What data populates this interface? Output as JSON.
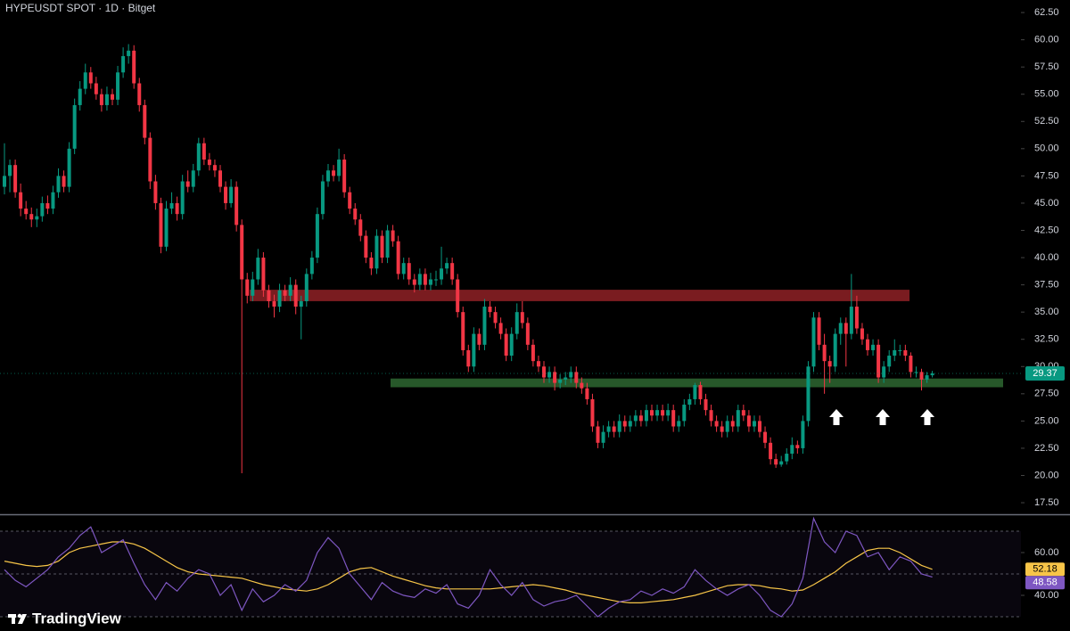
{
  "chart_data": [
    {
      "type": "candlestick",
      "title": "HYPEUSDT SPOT · 1D · Bitget",
      "up_color": "#089981",
      "down_color": "#f23645",
      "ylim": [
        16.44,
        63.65
      ],
      "yticks": [
        {
          "value": 62.5,
          "label": "62.50"
        },
        {
          "value": 60,
          "label": "60.00"
        },
        {
          "value": 57.5,
          "label": "57.50"
        },
        {
          "value": 55,
          "label": "55.00"
        },
        {
          "value": 52.5,
          "label": "52.50"
        },
        {
          "value": 50,
          "label": "50.00"
        },
        {
          "value": 47.5,
          "label": "47.50"
        },
        {
          "value": 45,
          "label": "45.00"
        },
        {
          "value": 42.5,
          "label": "42.50"
        },
        {
          "value": 40,
          "label": "40.00"
        },
        {
          "value": 37.5,
          "label": "37.50"
        },
        {
          "value": 35,
          "label": "35.00"
        },
        {
          "value": 32.5,
          "label": "32.50"
        },
        {
          "value": 30,
          "label": "30.00"
        },
        {
          "value": 27.5,
          "label": "27.50"
        },
        {
          "value": 25,
          "label": "25.00"
        },
        {
          "value": 22.5,
          "label": "22.50"
        },
        {
          "value": 20,
          "label": "20.00"
        },
        {
          "value": 17.5,
          "label": "17.50"
        }
      ],
      "zones": [
        {
          "low": 36.0,
          "high": 37.05,
          "color": "#7a1c20"
        },
        {
          "low": 28.1,
          "high": 28.9,
          "color": "#27582a"
        }
      ],
      "candles": [
        [
          46.5,
          50.5,
          45.8,
          47.5
        ],
        [
          47.5,
          49,
          46,
          48.5
        ],
        [
          48.5,
          49,
          45.5,
          46
        ],
        [
          46,
          46.8,
          43.8,
          44.5
        ],
        [
          44.5,
          45.2,
          43.5,
          44
        ],
        [
          44,
          44.6,
          42.8,
          43.5
        ],
        [
          43.5,
          44.5,
          42.8,
          43.8
        ],
        [
          43.8,
          45.6,
          43.3,
          45
        ],
        [
          45,
          45.7,
          44,
          44.5
        ],
        [
          44.5,
          46.6,
          44,
          46
        ],
        [
          46,
          48.2,
          45.5,
          47.5
        ],
        [
          47.5,
          48,
          46,
          46.5
        ],
        [
          46.5,
          50.6,
          46,
          50
        ],
        [
          50,
          54.6,
          49.5,
          54
        ],
        [
          54,
          56.2,
          53.5,
          55.5
        ],
        [
          55.5,
          57.8,
          55,
          57
        ],
        [
          57,
          57.5,
          55.5,
          56
        ],
        [
          56,
          56.6,
          54.5,
          55
        ],
        [
          55,
          55.5,
          53.4,
          54
        ],
        [
          54,
          55.7,
          53.5,
          55
        ],
        [
          55,
          55.5,
          54,
          54.5
        ],
        [
          54.5,
          57.6,
          54,
          57
        ],
        [
          57,
          59.3,
          56.5,
          58.5
        ],
        [
          58.5,
          59.6,
          57.8,
          59
        ],
        [
          59,
          59.5,
          55.5,
          56
        ],
        [
          56,
          56.5,
          53.4,
          54
        ],
        [
          54,
          54.5,
          50.4,
          51
        ],
        [
          51,
          51.5,
          46.3,
          47
        ],
        [
          47,
          47.6,
          44.4,
          45
        ],
        [
          45,
          45.5,
          40.4,
          41
        ],
        [
          41,
          45.2,
          40.6,
          44.5
        ],
        [
          44.5,
          46,
          44,
          45
        ],
        [
          45,
          45.6,
          43.4,
          44
        ],
        [
          44,
          47.6,
          43.5,
          47
        ],
        [
          47,
          48,
          46,
          46.5
        ],
        [
          46.5,
          48.6,
          46,
          48
        ],
        [
          48,
          51,
          47.5,
          50.5
        ],
        [
          50.5,
          51,
          48.5,
          49
        ],
        [
          49,
          49.6,
          48,
          48.5
        ],
        [
          48.5,
          49,
          47.4,
          48
        ],
        [
          48,
          48.5,
          46,
          46.5
        ],
        [
          46.5,
          47,
          44.4,
          45
        ],
        [
          45,
          47.2,
          44.6,
          46.5
        ],
        [
          46.5,
          47,
          42.4,
          43
        ],
        [
          43,
          43.5,
          20.2,
          38
        ],
        [
          38,
          38.6,
          35.8,
          36.5
        ],
        [
          36.5,
          38.7,
          36,
          38
        ],
        [
          38,
          40.8,
          37.5,
          40
        ],
        [
          40,
          40.5,
          36.4,
          37
        ],
        [
          37,
          37.5,
          35.4,
          36
        ],
        [
          36,
          36.6,
          34.5,
          35.5
        ],
        [
          35.5,
          37.6,
          35,
          37
        ],
        [
          37,
          37.5,
          36,
          36.5
        ],
        [
          36.5,
          38.2,
          36,
          37.5
        ],
        [
          37.5,
          38,
          34.8,
          35.5
        ],
        [
          35.5,
          36.5,
          32.5,
          36
        ],
        [
          36,
          39,
          35.5,
          38.5
        ],
        [
          38.5,
          40.6,
          38,
          40
        ],
        [
          40,
          44.6,
          39.5,
          44
        ],
        [
          44,
          47.6,
          43.5,
          47
        ],
        [
          47,
          48.6,
          46.5,
          48
        ],
        [
          48,
          48.5,
          47,
          47.5
        ],
        [
          47.5,
          50,
          47,
          49
        ],
        [
          49,
          49.5,
          45.5,
          46
        ],
        [
          46,
          46.5,
          44,
          44.5
        ],
        [
          44.5,
          45,
          43,
          43.5
        ],
        [
          43.5,
          44,
          41.5,
          42
        ],
        [
          42,
          42.5,
          39.5,
          40
        ],
        [
          40,
          40.5,
          38.4,
          39
        ],
        [
          39,
          42.6,
          38.5,
          42
        ],
        [
          42,
          42.5,
          39.5,
          40
        ],
        [
          40,
          43,
          39.5,
          42.5
        ],
        [
          42.5,
          43,
          41,
          41.5
        ],
        [
          41.5,
          42,
          38,
          38.5
        ],
        [
          38.5,
          40,
          38,
          39.5
        ],
        [
          39.5,
          40,
          37.5,
          38
        ],
        [
          38,
          38.5,
          36.8,
          37.5
        ],
        [
          37.5,
          39,
          37,
          38.5
        ],
        [
          38.5,
          39,
          37,
          37.5
        ],
        [
          37.5,
          38.6,
          37,
          38
        ],
        [
          38,
          38.8,
          37.4,
          38
        ],
        [
          38,
          41,
          37.5,
          39
        ],
        [
          39,
          40,
          38.5,
          39.5
        ],
        [
          39.5,
          40,
          37.5,
          38
        ],
        [
          38,
          38.5,
          34.5,
          35
        ],
        [
          35,
          35.5,
          31,
          31.5
        ],
        [
          31.5,
          32,
          29.5,
          30
        ],
        [
          30,
          33.6,
          29.5,
          33
        ],
        [
          33,
          33.5,
          31.5,
          32
        ],
        [
          32,
          36.2,
          31.5,
          35.5
        ],
        [
          35.5,
          36,
          34.5,
          35
        ],
        [
          35,
          35.5,
          33.5,
          34
        ],
        [
          34,
          34.5,
          32.5,
          33
        ],
        [
          33,
          33.5,
          30.5,
          31
        ],
        [
          31,
          33.6,
          30.5,
          33
        ],
        [
          33,
          35.8,
          32.5,
          35
        ],
        [
          35,
          36,
          33.5,
          34
        ],
        [
          34,
          34.5,
          31.5,
          32
        ],
        [
          32,
          32.5,
          30,
          30.5
        ],
        [
          30.5,
          31,
          29.5,
          30
        ],
        [
          30,
          30.5,
          28.5,
          29
        ],
        [
          29,
          30,
          28.5,
          29.5
        ],
        [
          29.5,
          30,
          27.8,
          28.5
        ],
        [
          28.5,
          29.3,
          28,
          28.8
        ],
        [
          28.8,
          29.5,
          28.3,
          29
        ],
        [
          29,
          30,
          28.5,
          29.5
        ],
        [
          29.5,
          30,
          28,
          28.5
        ],
        [
          28.5,
          29,
          27.5,
          28
        ],
        [
          28,
          28.5,
          26.5,
          27
        ],
        [
          27,
          27.5,
          24,
          24.5
        ],
        [
          24.5,
          25,
          22.5,
          23
        ],
        [
          23,
          24.6,
          22.5,
          24
        ],
        [
          24,
          25,
          23.5,
          24.5
        ],
        [
          24.5,
          25,
          23.5,
          24
        ],
        [
          24,
          25.6,
          23.5,
          25
        ],
        [
          25,
          25.5,
          24,
          24.5
        ],
        [
          24.5,
          25.5,
          24,
          25
        ],
        [
          25,
          26,
          24.5,
          25.5
        ],
        [
          25.5,
          26,
          24.5,
          25
        ],
        [
          25,
          26.5,
          24.5,
          26
        ],
        [
          26,
          26.5,
          25,
          25.5
        ],
        [
          25.5,
          26.5,
          25,
          26
        ],
        [
          26,
          26.5,
          25,
          25.5
        ],
        [
          25.5,
          26.6,
          25,
          26
        ],
        [
          26,
          26.5,
          24,
          24.5
        ],
        [
          24.5,
          25.5,
          24,
          25
        ],
        [
          25,
          27,
          24.5,
          26.5
        ],
        [
          26.5,
          27.5,
          26,
          27
        ],
        [
          27,
          28.5,
          26.5,
          28.3
        ],
        [
          28.3,
          28.6,
          26.5,
          27
        ],
        [
          27,
          27.5,
          25.5,
          26
        ],
        [
          26,
          26.5,
          24.5,
          25
        ],
        [
          25,
          25.5,
          24,
          24.5
        ],
        [
          24.5,
          25,
          23.5,
          24
        ],
        [
          24,
          25.5,
          23.5,
          25
        ],
        [
          25,
          25.5,
          24,
          24.5
        ],
        [
          24.5,
          26.5,
          24,
          26
        ],
        [
          26,
          26.5,
          25,
          25.5
        ],
        [
          25.5,
          26,
          24,
          24.5
        ],
        [
          24.5,
          25.5,
          24,
          25
        ],
        [
          25,
          25.5,
          23.5,
          24
        ],
        [
          24,
          24.5,
          22.5,
          23
        ],
        [
          23,
          23.5,
          21,
          21.5
        ],
        [
          21.5,
          22,
          20.7,
          21
        ],
        [
          21,
          21.8,
          20.8,
          21.3
        ],
        [
          21.3,
          22.5,
          21,
          22
        ],
        [
          22,
          23.5,
          21.5,
          22.8
        ],
        [
          22.8,
          23.2,
          22,
          22.5
        ],
        [
          22.5,
          25.5,
          22,
          25
        ],
        [
          25,
          30.5,
          24.5,
          30
        ],
        [
          30,
          35,
          29.5,
          34.5
        ],
        [
          34.5,
          35,
          31.5,
          32
        ],
        [
          32,
          33,
          27.5,
          30.5
        ],
        [
          30.5,
          31,
          28.5,
          30
        ],
        [
          30,
          33.5,
          29.5,
          33
        ],
        [
          33,
          34.5,
          32,
          34
        ],
        [
          34,
          34.5,
          30,
          33
        ],
        [
          33,
          38.5,
          32.5,
          35.5
        ],
        [
          35.5,
          36.5,
          33,
          33.5
        ],
        [
          33.5,
          34,
          32,
          32.5
        ],
        [
          32.5,
          33,
          31,
          31.5
        ],
        [
          31.5,
          32.5,
          31,
          32
        ],
        [
          32,
          32.5,
          28.5,
          29
        ],
        [
          29,
          30.5,
          28.5,
          30
        ],
        [
          30,
          31.5,
          29.5,
          31
        ],
        [
          31,
          32.5,
          30.5,
          31.5
        ],
        [
          31.5,
          32,
          31,
          31.5
        ],
        [
          31.5,
          32,
          30.5,
          31
        ],
        [
          31,
          31.3,
          29,
          29.5
        ],
        [
          29.5,
          30,
          29,
          29.5
        ],
        [
          29.5,
          29.8,
          27.8,
          28.8
        ],
        [
          28.8,
          29.5,
          28.5,
          29.2
        ],
        [
          29.2,
          29.6,
          29,
          29.37
        ]
      ]
    },
    {
      "type": "line",
      "ylim": [
        23.33,
        77.5
      ],
      "yticks": [
        {
          "value": 60,
          "label": "60.00"
        },
        {
          "value": 40,
          "label": "40.00"
        }
      ],
      "levels": [
        70,
        50,
        30
      ],
      "band_color": "#7e57c2",
      "series": [
        {
          "color": "#7e57c2",
          "values": [
            52,
            47,
            44,
            48,
            52,
            58,
            62,
            68,
            72,
            60,
            63,
            66,
            55,
            45,
            38,
            46,
            42,
            48,
            52,
            50,
            40,
            45,
            33,
            43,
            37,
            40,
            45,
            42,
            47,
            60,
            67,
            62,
            50,
            44,
            38,
            46,
            42,
            40,
            39,
            43,
            41,
            45,
            36,
            34,
            40,
            52,
            45,
            40,
            46,
            38,
            35,
            37,
            38,
            40,
            35,
            30,
            34,
            37,
            38,
            42,
            40,
            43,
            41,
            44,
            52,
            47,
            43,
            40,
            43,
            45,
            40,
            33,
            30,
            36,
            48,
            76,
            65,
            60,
            70,
            68,
            58,
            60,
            52,
            58,
            56,
            50,
            48.58
          ]
        },
        {
          "color": "#f7c548",
          "values": [
            56,
            55,
            54,
            53.5,
            54,
            56,
            60,
            62,
            63,
            64,
            65,
            65,
            64,
            62,
            59,
            56,
            53,
            51,
            50,
            49.5,
            49,
            48.5,
            48,
            46.5,
            45,
            44,
            43,
            42.5,
            42,
            43,
            45,
            48,
            51,
            52.5,
            53,
            51,
            49,
            47.5,
            46,
            44.5,
            43.5,
            43,
            43,
            43,
            43,
            43,
            43.5,
            44,
            44.5,
            45,
            44.5,
            43.5,
            42.5,
            41,
            40,
            39,
            38,
            37,
            36.5,
            36.5,
            37,
            37.5,
            38,
            39,
            40,
            41.5,
            43,
            44.5,
            45,
            45,
            44.5,
            43.5,
            43,
            42,
            42.5,
            45,
            48,
            51,
            55,
            58,
            61,
            62,
            62,
            60,
            57,
            54,
            52.18
          ]
        }
      ]
    }
  ],
  "brand": "TradingView"
}
